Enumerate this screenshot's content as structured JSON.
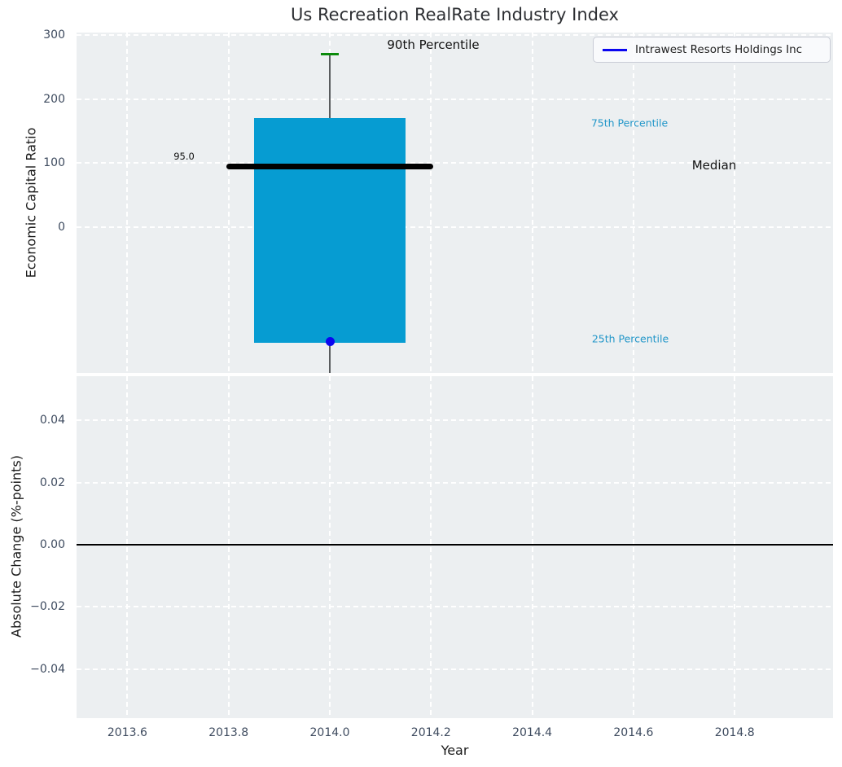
{
  "title": "Us Recreation RealRate Industry Index",
  "colors": {
    "figure_background": "#ffffff",
    "axes_background": "#eceff1",
    "grid": "#ffffff",
    "iqr_bar": "#069cd2",
    "median_line": "#000000",
    "whisker": "#595c5e",
    "percentile_90_cap": "#0b8a0b",
    "company_marker": "#0b06f0",
    "percentile_text": "#2397c9",
    "tick_label": "#3e4b5f",
    "zero_line": "#000000"
  },
  "legend": {
    "label": "Intrawest Resorts Holdings Inc"
  },
  "top_axes": {
    "ylabel": "Economic Capital Ratio",
    "yticks": [
      {
        "value": 300,
        "label": "300"
      },
      {
        "value": 200,
        "label": "200"
      },
      {
        "value": 100,
        "label": "100"
      },
      {
        "value": 0,
        "label": "0"
      }
    ],
    "annotations": {
      "p90": "90th Percentile",
      "p75": "75th Percentile",
      "median": "Median",
      "p25": "25th Percentile",
      "median_value_label": "95.0"
    }
  },
  "bottom_axes": {
    "ylabel": "Absolute Change (%-points)",
    "xlabel": "Year",
    "yticks": [
      {
        "value": 0.04,
        "label": "0.04"
      },
      {
        "value": 0.02,
        "label": "0.02"
      },
      {
        "value": 0.0,
        "label": "0.00"
      },
      {
        "value": -0.02,
        "label": "−0.02"
      },
      {
        "value": -0.04,
        "label": "−0.04"
      }
    ],
    "xticks": [
      {
        "value": 2013.6,
        "label": "2013.6"
      },
      {
        "value": 2013.8,
        "label": "2013.8"
      },
      {
        "value": 2014.0,
        "label": "2014.0"
      },
      {
        "value": 2014.2,
        "label": "2014.2"
      },
      {
        "value": 2014.4,
        "label": "2014.4"
      },
      {
        "value": 2014.6,
        "label": "2014.6"
      },
      {
        "value": 2014.8,
        "label": "2014.8"
      }
    ]
  },
  "chart_data": [
    {
      "type": "box",
      "title": "Us Recreation RealRate Industry Index",
      "ylabel": "Economic Capital Ratio",
      "x": 2014.0,
      "percentile_90": 270,
      "percentile_75": 170,
      "median": 95.0,
      "percentile_25": -180,
      "company": {
        "name": "Intrawest Resorts Holdings Inc",
        "value": -178
      },
      "whisker_extends_below_axis": true,
      "box_half_width_years": 0.15,
      "median_half_width_years": 0.205,
      "xlim": [
        2013.5,
        2015.0
      ],
      "ylim": [
        -228,
        304
      ],
      "grid": true,
      "legend_position": "upper right"
    },
    {
      "type": "line",
      "ylabel": "Absolute Change (%-points)",
      "xlabel": "Year",
      "series": [],
      "zero_line": 0.0,
      "xlim": [
        2013.5,
        2015.0
      ],
      "ylim": [
        -0.055,
        0.054
      ],
      "grid": true
    }
  ]
}
